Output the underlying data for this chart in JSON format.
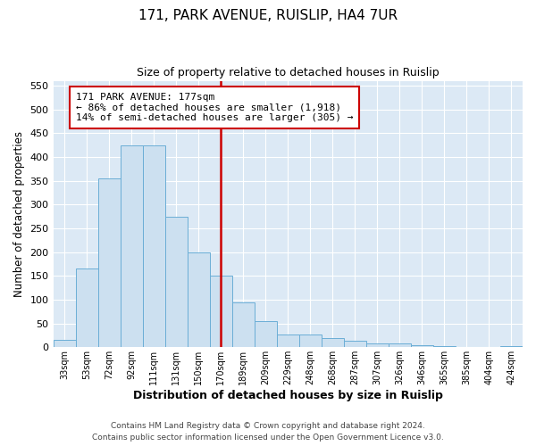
{
  "title": "171, PARK AVENUE, RUISLIP, HA4 7UR",
  "subtitle": "Size of property relative to detached houses in Ruislip",
  "xlabel": "Distribution of detached houses by size in Ruislip",
  "ylabel": "Number of detached properties",
  "footnote1": "Contains HM Land Registry data © Crown copyright and database right 2024.",
  "footnote2": "Contains public sector information licensed under the Open Government Licence v3.0.",
  "bin_labels": [
    "33sqm",
    "53sqm",
    "72sqm",
    "92sqm",
    "111sqm",
    "131sqm",
    "150sqm",
    "170sqm",
    "189sqm",
    "209sqm",
    "229sqm",
    "248sqm",
    "268sqm",
    "287sqm",
    "307sqm",
    "326sqm",
    "346sqm",
    "365sqm",
    "385sqm",
    "404sqm",
    "424sqm"
  ],
  "bar_heights": [
    15,
    165,
    355,
    425,
    425,
    275,
    200,
    150,
    95,
    55,
    27,
    27,
    20,
    13,
    8,
    8,
    5,
    2,
    1,
    0,
    2
  ],
  "bar_color": "#cce0f0",
  "bar_edge_color": "#6baed6",
  "grid_color": "#dce9f5",
  "property_line_color": "#cc0000",
  "property_line_bin": 7,
  "annotation_title": "171 PARK AVENUE: 177sqm",
  "annotation_line1": "← 86% of detached houses are smaller (1,918)",
  "annotation_line2": "14% of semi-detached houses are larger (305) →",
  "annotation_box_color": "#ffffff",
  "annotation_box_edge": "#cc0000",
  "ylim": [
    0,
    560
  ],
  "yticks": [
    0,
    50,
    100,
    150,
    200,
    250,
    300,
    350,
    400,
    450,
    500,
    550
  ]
}
